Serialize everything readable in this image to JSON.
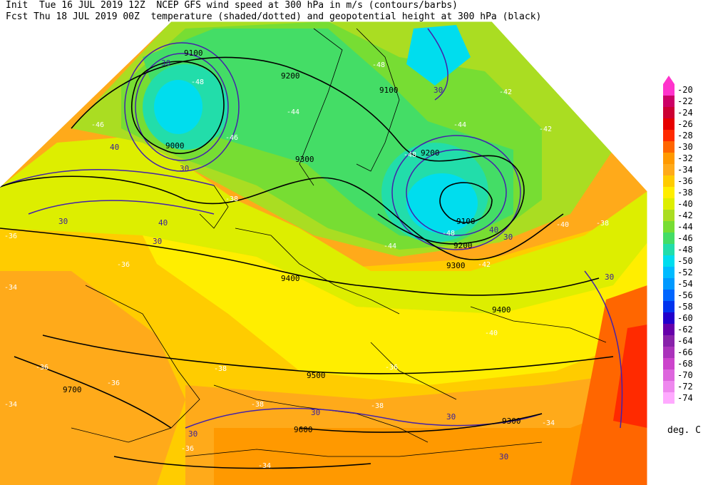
{
  "header": {
    "init": "Init  Tue 16 JUL 2019 12Z",
    "fcst": "Fcst Thu 18 JUL 2019 00Z",
    "title1": "NCEP GFS wind speed at 300 hPa in m/s (contours/barbs)",
    "title2": "temperature (shaded/dotted) and geopotential height at 300 hPa (black)"
  },
  "legend": {
    "unit": "deg. C",
    "levels": [
      {
        "label": "-20",
        "color": "#ff33cc"
      },
      {
        "label": "-22",
        "color": "#cc0066"
      },
      {
        "label": "-24",
        "color": "#cc0033"
      },
      {
        "label": "-26",
        "color": "#e60000"
      },
      {
        "label": "-28",
        "color": "#ff2a00"
      },
      {
        "label": "-30",
        "color": "#ff6600"
      },
      {
        "label": "-32",
        "color": "#ff9900"
      },
      {
        "label": "-34",
        "color": "#ffaa1a"
      },
      {
        "label": "-36",
        "color": "#ffcc00"
      },
      {
        "label": "-38",
        "color": "#ffee00"
      },
      {
        "label": "-40",
        "color": "#ddee00"
      },
      {
        "label": "-42",
        "color": "#aadd22"
      },
      {
        "label": "-44",
        "color": "#77dd33"
      },
      {
        "label": "-46",
        "color": "#44dd66"
      },
      {
        "label": "-48",
        "color": "#22ddaa"
      },
      {
        "label": "-50",
        "color": "#00ddee"
      },
      {
        "label": "-52",
        "color": "#00bbff"
      },
      {
        "label": "-54",
        "color": "#0099ff"
      },
      {
        "label": "-56",
        "color": "#0066ff"
      },
      {
        "label": "-58",
        "color": "#0033ee"
      },
      {
        "label": "-60",
        "color": "#2200cc"
      },
      {
        "label": "-62",
        "color": "#6600aa"
      },
      {
        "label": "-64",
        "color": "#8822aa"
      },
      {
        "label": "-66",
        "color": "#aa33bb"
      },
      {
        "label": "-68",
        "color": "#cc44cc"
      },
      {
        "label": "-70",
        "color": "#dd66dd"
      },
      {
        "label": "-72",
        "color": "#ee88ee"
      },
      {
        "label": "-74",
        "color": "#ffaaff"
      }
    ]
  },
  "map": {
    "height_labels": [
      "9100",
      "9000",
      "9200",
      "9300",
      "9400",
      "9500",
      "9600",
      "9700",
      "9100",
      "9200",
      "9300",
      "9300",
      "9400",
      "9100",
      "9200"
    ],
    "wind_labels": [
      "30",
      "40",
      "30",
      "30",
      "30",
      "40",
      "30",
      "30",
      "30",
      "40",
      "30",
      "30",
      "30",
      "30"
    ],
    "temp_labels": [
      "-48",
      "-46",
      "-48",
      "-44",
      "-42",
      "-44",
      "-38",
      "-36",
      "-36",
      "-34",
      "-36",
      "-36",
      "-34",
      "-38",
      "-38",
      "-36",
      "-34",
      "-42",
      "-40",
      "-38",
      "-42",
      "-40",
      "-38",
      "-36",
      "-34",
      "-46",
      "-48",
      "-44",
      "-48"
    ]
  }
}
